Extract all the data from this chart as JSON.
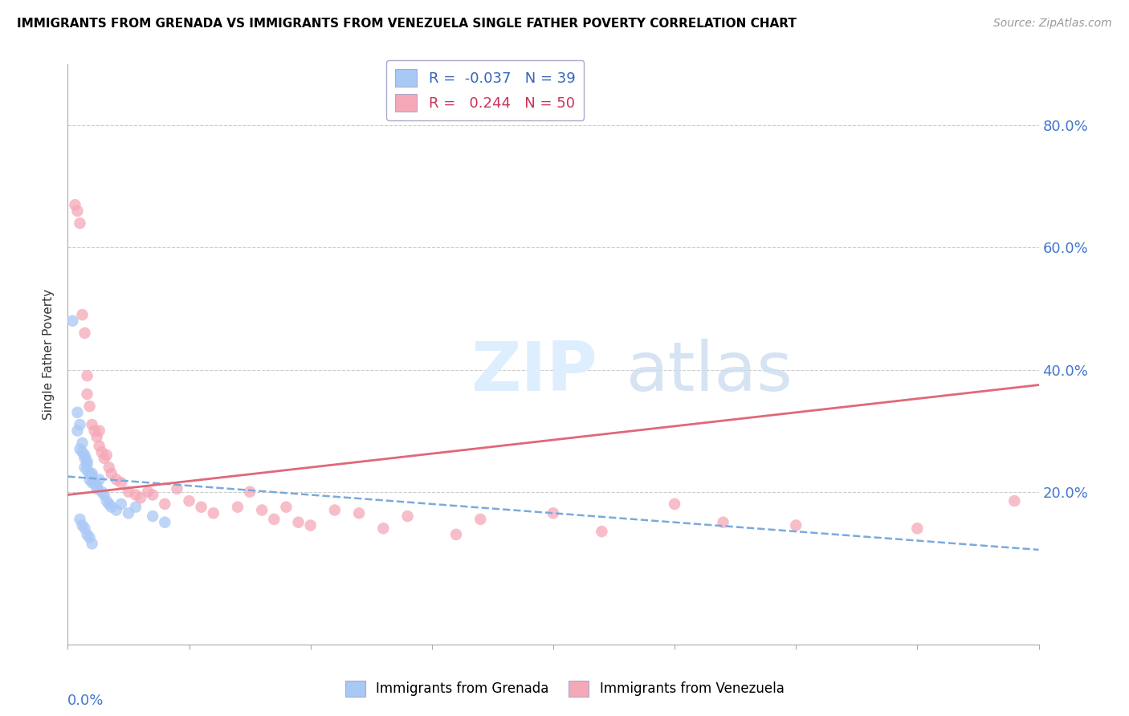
{
  "title": "IMMIGRANTS FROM GRENADA VS IMMIGRANTS FROM VENEZUELA SINGLE FATHER POVERTY CORRELATION CHART",
  "source": "Source: ZipAtlas.com",
  "ylabel": "Single Father Poverty",
  "ytick_vals": [
    0.8,
    0.6,
    0.4,
    0.2
  ],
  "xlim": [
    0.0,
    0.4
  ],
  "ylim": [
    -0.05,
    0.9
  ],
  "legend": {
    "grenada_label": "R =  -0.037   N = 39",
    "venezuela_label": "R =   0.244   N = 50"
  },
  "grenada_color": "#a8c8f5",
  "venezuela_color": "#f5a8b8",
  "grenada_line_color": "#7aaadd",
  "venezuela_line_color": "#e06878",
  "grenada_trend": [
    0.0,
    0.4,
    0.225,
    0.105
  ],
  "venezuela_trend": [
    0.0,
    0.4,
    0.195,
    0.375
  ],
  "grenada_points": [
    [
      0.002,
      0.48
    ],
    [
      0.004,
      0.33
    ],
    [
      0.004,
      0.3
    ],
    [
      0.005,
      0.31
    ],
    [
      0.005,
      0.27
    ],
    [
      0.006,
      0.28
    ],
    [
      0.006,
      0.265
    ],
    [
      0.007,
      0.26
    ],
    [
      0.007,
      0.255
    ],
    [
      0.007,
      0.24
    ],
    [
      0.008,
      0.25
    ],
    [
      0.008,
      0.245
    ],
    [
      0.008,
      0.235
    ],
    [
      0.009,
      0.23
    ],
    [
      0.009,
      0.22
    ],
    [
      0.01,
      0.23
    ],
    [
      0.01,
      0.225
    ],
    [
      0.01,
      0.215
    ],
    [
      0.011,
      0.215
    ],
    [
      0.012,
      0.21
    ],
    [
      0.012,
      0.205
    ],
    [
      0.013,
      0.22
    ],
    [
      0.014,
      0.2
    ],
    [
      0.015,
      0.195
    ],
    [
      0.016,
      0.185
    ],
    [
      0.017,
      0.18
    ],
    [
      0.018,
      0.175
    ],
    [
      0.02,
      0.17
    ],
    [
      0.022,
      0.18
    ],
    [
      0.025,
      0.165
    ],
    [
      0.028,
      0.175
    ],
    [
      0.035,
      0.16
    ],
    [
      0.04,
      0.15
    ],
    [
      0.005,
      0.155
    ],
    [
      0.006,
      0.145
    ],
    [
      0.007,
      0.14
    ],
    [
      0.008,
      0.13
    ],
    [
      0.009,
      0.125
    ],
    [
      0.01,
      0.115
    ]
  ],
  "venezuela_points": [
    [
      0.003,
      0.67
    ],
    [
      0.004,
      0.66
    ],
    [
      0.005,
      0.64
    ],
    [
      0.006,
      0.49
    ],
    [
      0.007,
      0.46
    ],
    [
      0.008,
      0.39
    ],
    [
      0.008,
      0.36
    ],
    [
      0.009,
      0.34
    ],
    [
      0.01,
      0.31
    ],
    [
      0.011,
      0.3
    ],
    [
      0.012,
      0.29
    ],
    [
      0.013,
      0.3
    ],
    [
      0.013,
      0.275
    ],
    [
      0.014,
      0.265
    ],
    [
      0.015,
      0.255
    ],
    [
      0.016,
      0.26
    ],
    [
      0.017,
      0.24
    ],
    [
      0.018,
      0.23
    ],
    [
      0.02,
      0.22
    ],
    [
      0.022,
      0.215
    ],
    [
      0.025,
      0.2
    ],
    [
      0.028,
      0.195
    ],
    [
      0.03,
      0.19
    ],
    [
      0.033,
      0.2
    ],
    [
      0.035,
      0.195
    ],
    [
      0.04,
      0.18
    ],
    [
      0.045,
      0.205
    ],
    [
      0.05,
      0.185
    ],
    [
      0.055,
      0.175
    ],
    [
      0.06,
      0.165
    ],
    [
      0.07,
      0.175
    ],
    [
      0.075,
      0.2
    ],
    [
      0.08,
      0.17
    ],
    [
      0.085,
      0.155
    ],
    [
      0.09,
      0.175
    ],
    [
      0.095,
      0.15
    ],
    [
      0.1,
      0.145
    ],
    [
      0.11,
      0.17
    ],
    [
      0.12,
      0.165
    ],
    [
      0.13,
      0.14
    ],
    [
      0.14,
      0.16
    ],
    [
      0.16,
      0.13
    ],
    [
      0.17,
      0.155
    ],
    [
      0.2,
      0.165
    ],
    [
      0.22,
      0.135
    ],
    [
      0.25,
      0.18
    ],
    [
      0.27,
      0.15
    ],
    [
      0.3,
      0.145
    ],
    [
      0.35,
      0.14
    ],
    [
      0.39,
      0.185
    ]
  ]
}
